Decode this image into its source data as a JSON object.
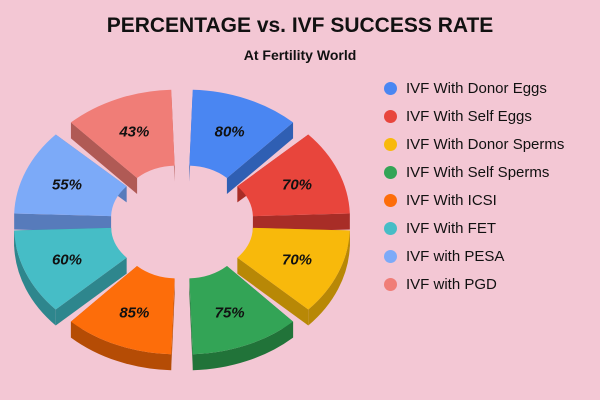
{
  "chart_data": {
    "type": "pie",
    "title": "PERCENTAGE vs. IVF SUCCESS RATE",
    "subtitle": "At Fertility World",
    "legend_position": "right",
    "slices": [
      {
        "name": "IVF With Donor Eggs",
        "value": 80,
        "label": "80%",
        "color": "#4a86f2",
        "dark": "#2f5fb3"
      },
      {
        "name": "IVF With Self Eggs",
        "value": 70,
        "label": "70%",
        "color": "#e8453c",
        "dark": "#a82d27"
      },
      {
        "name": "IVF With Donor Sperms",
        "value": 70,
        "label": "70%",
        "color": "#f8b90b",
        "dark": "#b88806"
      },
      {
        "name": "IVF With Self Sperms",
        "value": 75,
        "label": "75%",
        "color": "#33a456",
        "dark": "#217339"
      },
      {
        "name": "IVF With ICSI",
        "value": 85,
        "label": "85%",
        "color": "#fd6d0a",
        "dark": "#b54c05"
      },
      {
        "name": "IVF With FET",
        "value": 60,
        "label": "60%",
        "color": "#46bdc6",
        "dark": "#2e868d"
      },
      {
        "name": "IVF with PESA",
        "value": 55,
        "label": "55%",
        "color": "#7caaf8",
        "dark": "#577bbb"
      },
      {
        "name": "IVF with PGD",
        "value": 43,
        "label": "43%",
        "color": "#f07d77",
        "dark": "#b05a55"
      }
    ]
  }
}
